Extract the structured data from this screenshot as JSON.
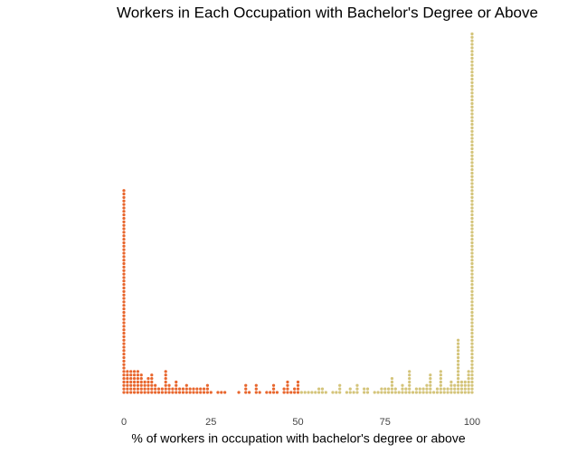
{
  "chart_data": {
    "type": "dotplot",
    "title": "Workers in Each Occupation with Bachelor's Degree or Above",
    "x_label": "% of workers in occupation with bachelor's degree or above",
    "xlim": [
      0,
      100
    ],
    "xticks": [
      0,
      25,
      50,
      75,
      100
    ],
    "series": [
      {
        "color": "#e8662d",
        "x": [
          0,
          1,
          2,
          3,
          4,
          5,
          6,
          7,
          8,
          9,
          10,
          11,
          12,
          13,
          14,
          15,
          16,
          17,
          18,
          19,
          20,
          21,
          22,
          23,
          24,
          25,
          27,
          28,
          29,
          33,
          35,
          36,
          38,
          39,
          41,
          42,
          43,
          44,
          46,
          47,
          48,
          49,
          50
        ],
        "values": [
          59,
          7,
          7,
          7,
          7,
          6,
          4,
          5,
          6,
          3,
          2,
          2,
          7,
          3,
          2,
          4,
          2,
          2,
          3,
          2,
          2,
          2,
          2,
          2,
          3,
          1,
          1,
          1,
          1,
          1,
          3,
          1,
          3,
          1,
          1,
          1,
          3,
          1,
          2,
          4,
          1,
          2,
          4
        ]
      },
      {
        "color": "#d4c47a",
        "x": [
          51,
          52,
          53,
          54,
          55,
          56,
          57,
          58,
          60,
          61,
          62,
          64,
          65,
          66,
          67,
          69,
          70,
          72,
          73,
          74,
          75,
          76,
          77,
          78,
          79,
          80,
          81,
          82,
          83,
          84,
          85,
          86,
          87,
          88,
          89,
          90,
          91,
          92,
          93,
          94,
          95,
          96,
          97,
          98,
          99,
          100
        ],
        "values": [
          1,
          1,
          1,
          1,
          1,
          2,
          2,
          1,
          1,
          1,
          3,
          1,
          2,
          1,
          3,
          2,
          2,
          1,
          1,
          2,
          2,
          2,
          5,
          2,
          1,
          3,
          2,
          7,
          1,
          2,
          2,
          2,
          3,
          6,
          1,
          2,
          7,
          2,
          2,
          4,
          3,
          16,
          4,
          4,
          7,
          104
        ]
      }
    ]
  }
}
